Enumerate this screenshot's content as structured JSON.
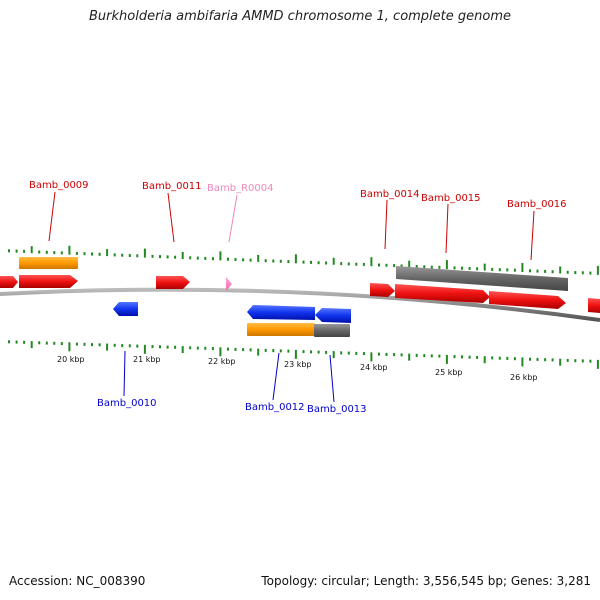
{
  "title": "Burkholderia ambifaria AMMD chromosome 1, complete genome",
  "accession": "Accession: NC_008390",
  "summary": "Topology: circular; Length: 3,556,545 bp; Genes: 3,281",
  "colors": {
    "forward_label": "#cc0000",
    "reverse_label": "#0000cc",
    "rna_label": "#ee88bb",
    "gene_forward": "#ee1111",
    "gene_reverse": "#1133ee",
    "rna_gene": "#ff88cc",
    "cds_orange": "#ff9900",
    "cds_gray": "#666666",
    "backbone": "#888888",
    "tick": "#228822"
  },
  "scale": {
    "unit": "kbp",
    "labels": [
      "20 kbp",
      "21 kbp",
      "22 kbp",
      "23 kbp",
      "24 kbp",
      "25 kbp",
      "26 kbp"
    ]
  },
  "genes": [
    {
      "name": "Bamb_0009",
      "strand": "forward",
      "type": "gene"
    },
    {
      "name": "Bamb_0010",
      "strand": "reverse",
      "type": "gene"
    },
    {
      "name": "Bamb_0011",
      "strand": "forward",
      "type": "gene"
    },
    {
      "name": "Bamb_R0004",
      "strand": "forward",
      "type": "rna"
    },
    {
      "name": "Bamb_0012",
      "strand": "reverse",
      "type": "gene"
    },
    {
      "name": "Bamb_0013",
      "strand": "reverse",
      "type": "gene"
    },
    {
      "name": "Bamb_0014",
      "strand": "forward",
      "type": "gene"
    },
    {
      "name": "Bamb_0015",
      "strand": "forward",
      "type": "gene"
    },
    {
      "name": "Bamb_0016",
      "strand": "forward",
      "type": "gene"
    }
  ]
}
